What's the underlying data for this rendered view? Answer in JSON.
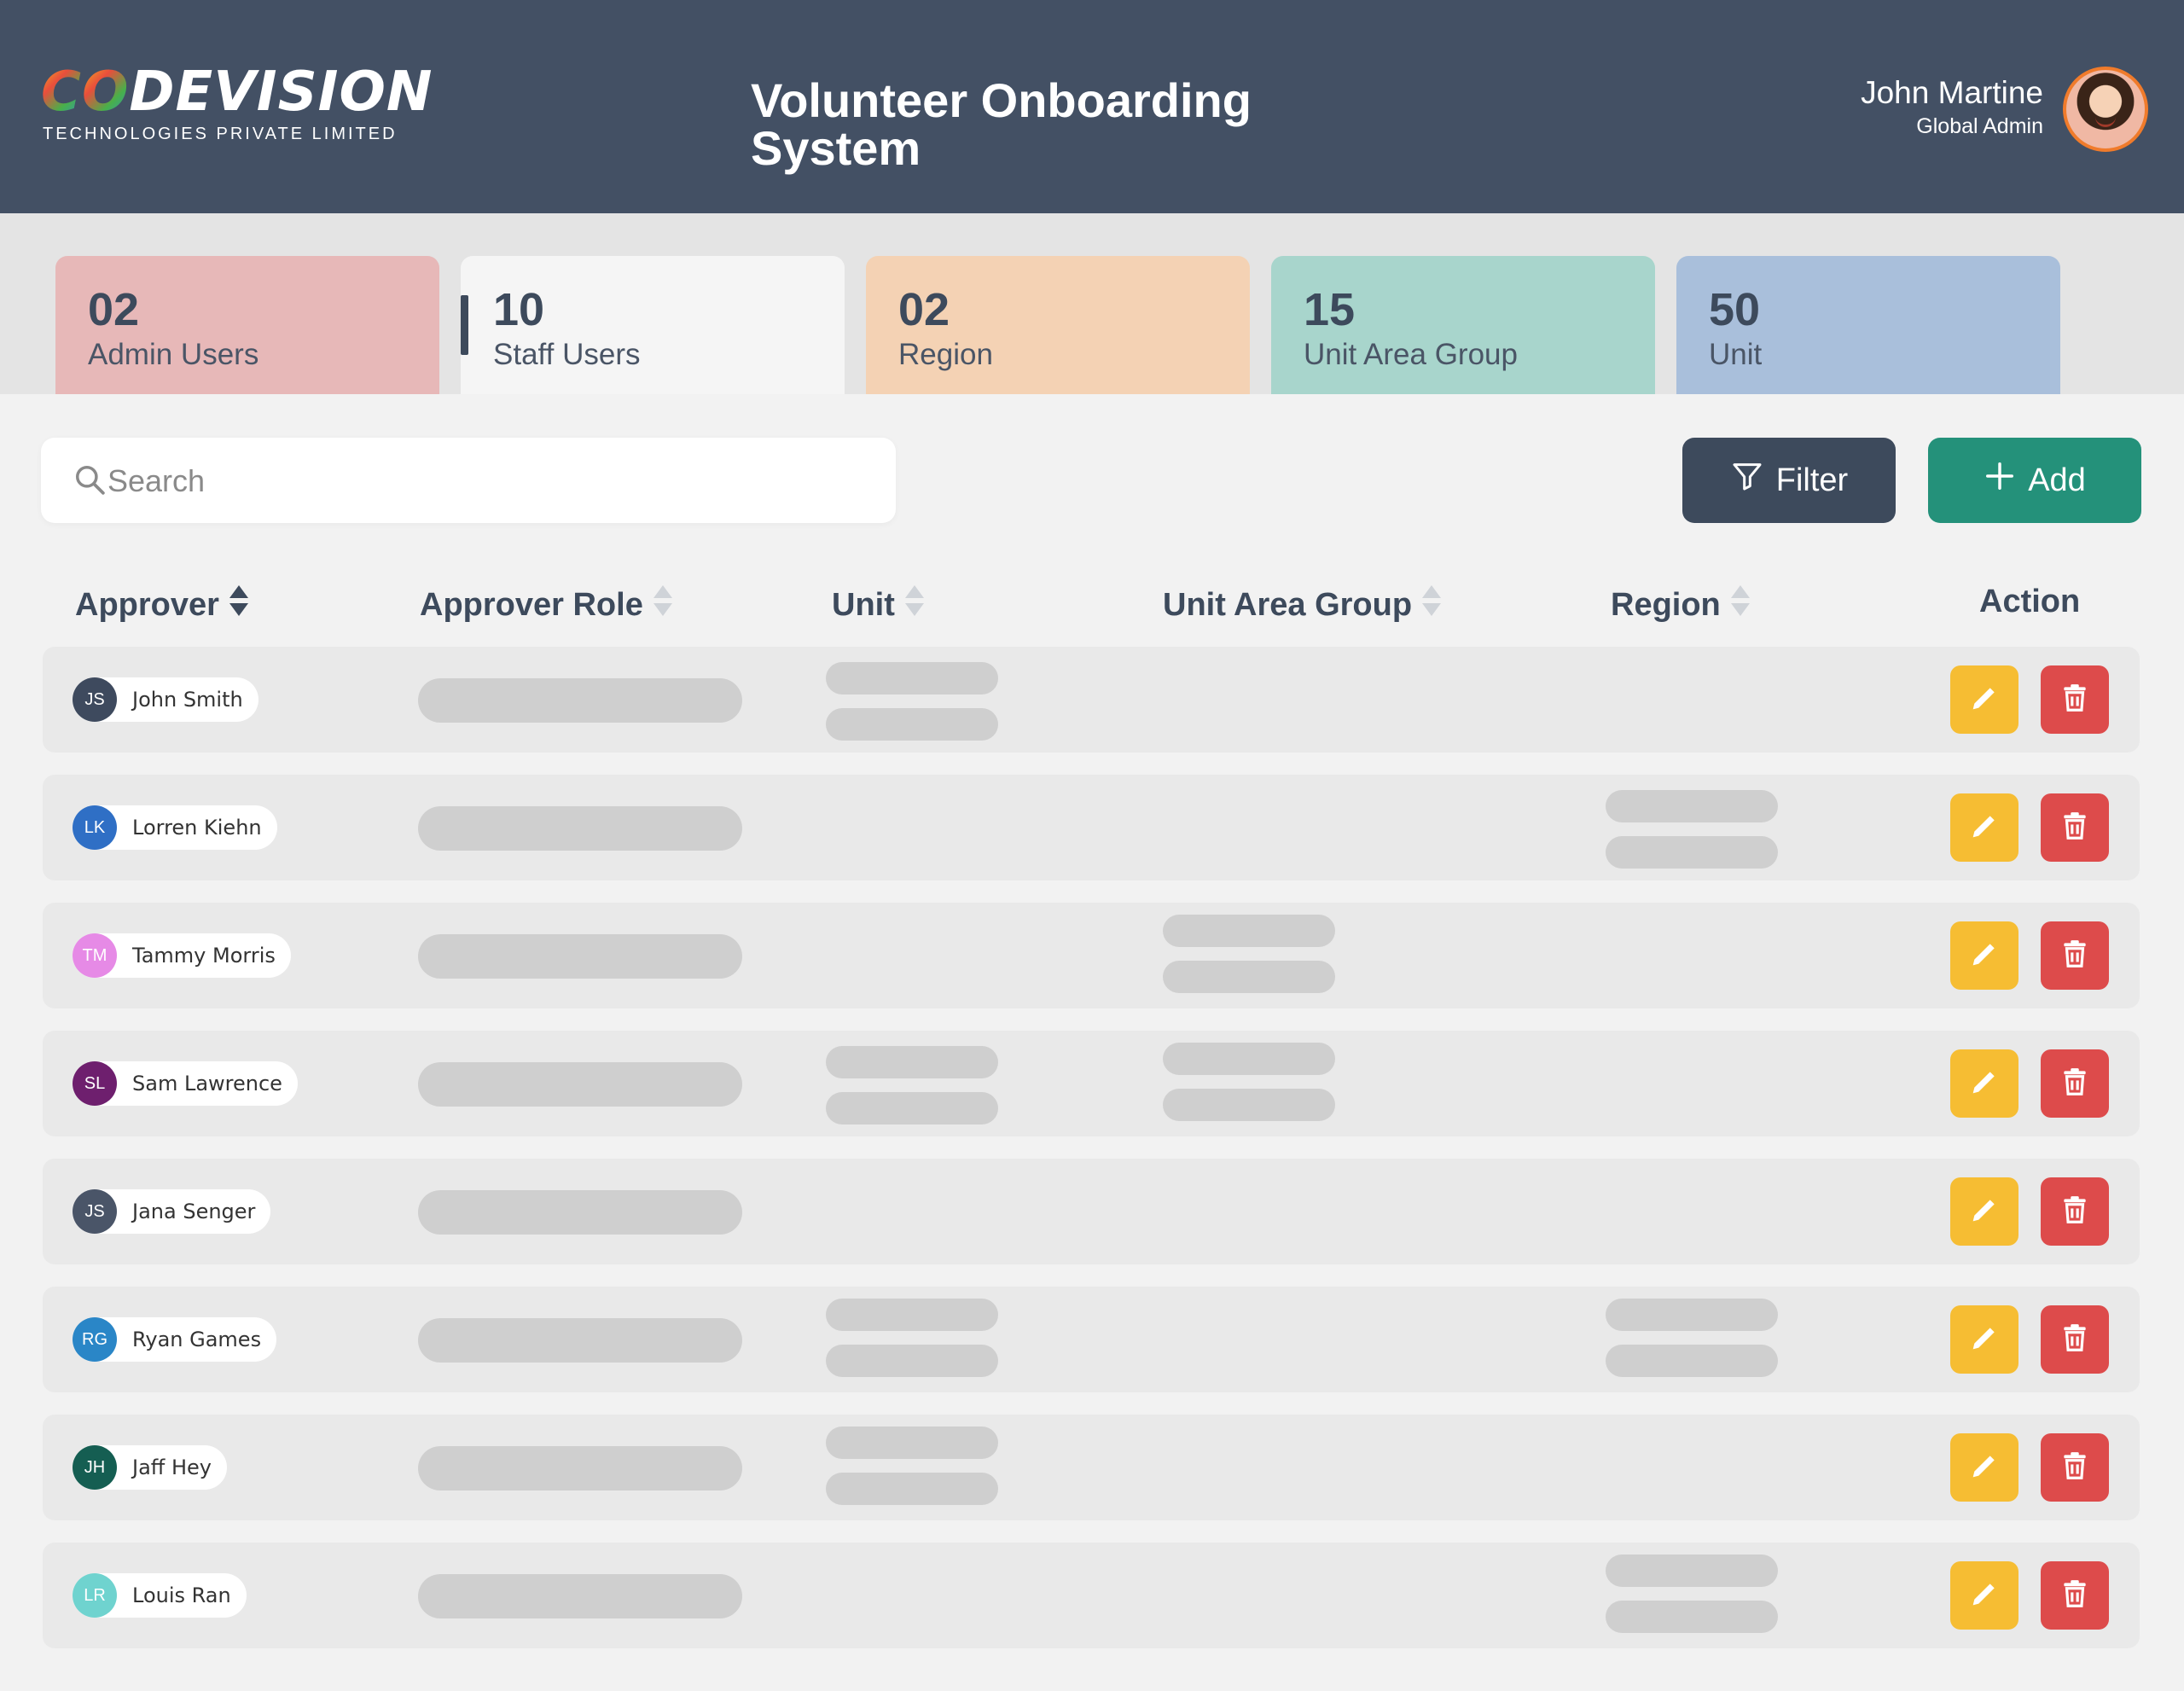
{
  "header": {
    "logo": "CODEVISION",
    "logo_subtitle": "TECHNOLOGIES PRIVATE LIMITED",
    "title": "Volunteer Onboarding System",
    "user": {
      "name": "John Martine",
      "role": "Global Admin"
    }
  },
  "stats": [
    {
      "value": "02",
      "label": "Admin Users",
      "color": "#e7b8b8"
    },
    {
      "value": "10",
      "label": "Staff Users",
      "color": "#f5f5f5",
      "active": true
    },
    {
      "value": "02",
      "label": "Region",
      "color": "#f4d2b4"
    },
    {
      "value": "15",
      "label": "Unit Area Group",
      "color": "#a8d5cc"
    },
    {
      "value": "50",
      "label": "Unit",
      "color": "#a9bfdb"
    }
  ],
  "toolbar": {
    "search_placeholder": "Search",
    "filter_label": "Filter",
    "add_label": "Add"
  },
  "table": {
    "columns": [
      "Approver",
      "Approver Role",
      "Unit",
      "Unit Area Group",
      "Region",
      "Action"
    ],
    "rows": [
      {
        "initials": "JS",
        "name": "John Smith",
        "avatar_color": "#3e4a5e"
      },
      {
        "initials": "LK",
        "name": "Lorren Kiehn",
        "avatar_color": "#2f6fc5"
      },
      {
        "initials": "TM",
        "name": "Tammy Morris",
        "avatar_color": "#e68ae6"
      },
      {
        "initials": "SL",
        "name": "Sam Lawrence",
        "avatar_color": "#6e1f6e"
      },
      {
        "initials": "JS",
        "name": "Jana Senger",
        "avatar_color": "#4a5568"
      },
      {
        "initials": "RG",
        "name": "Ryan Games",
        "avatar_color": "#2a86c7"
      },
      {
        "initials": "JH",
        "name": "Jaff Hey",
        "avatar_color": "#155e52"
      },
      {
        "initials": "LR",
        "name": "Louis Ran",
        "avatar_color": "#6fd3cf"
      }
    ]
  },
  "colors": {
    "header": "#435064",
    "filter": "#3d4a5c",
    "add": "#24917a",
    "edit": "#f6bd33",
    "delete": "#dd4b4b"
  },
  "icons": {
    "search": "search-icon",
    "filter": "filter-icon",
    "add": "plus-icon",
    "edit": "pencil-icon",
    "delete": "trash-icon",
    "sort": "sort-icon"
  }
}
